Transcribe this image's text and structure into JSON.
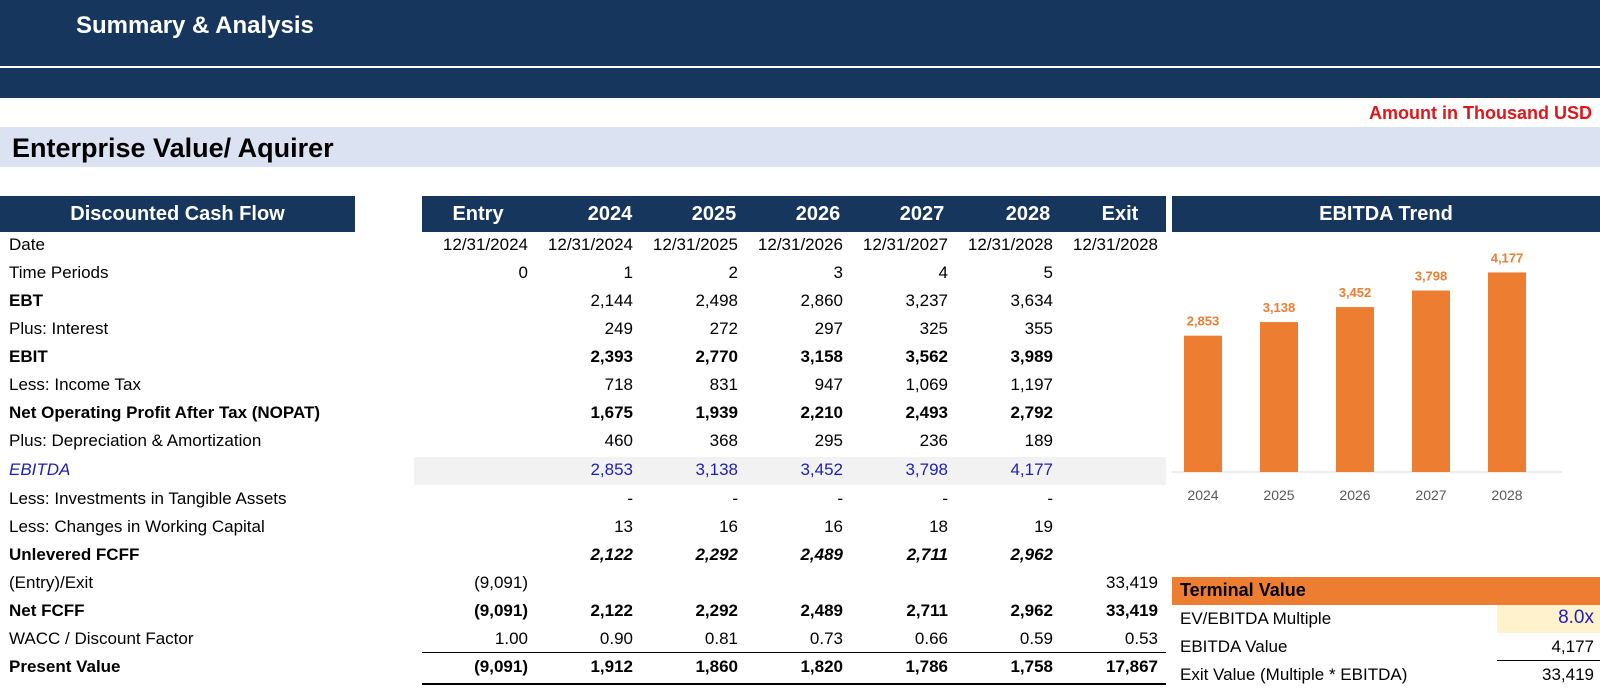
{
  "header": {
    "title": "Summary & Analysis"
  },
  "units_note": "Amount in Thousand USD",
  "section_title": "Enterprise Value/ Aquirer",
  "table": {
    "title": "Discounted Cash Flow",
    "columns": [
      "Entry",
      "2024",
      "2025",
      "2026",
      "2027",
      "2028",
      "Exit"
    ],
    "rows": [
      {
        "label": "Date",
        "style": "normal",
        "values": [
          "12/31/2024",
          "12/31/2024",
          "12/31/2025",
          "12/31/2026",
          "12/31/2027",
          "12/31/2028",
          "12/31/2028"
        ]
      },
      {
        "label": "Time Periods",
        "style": "normal",
        "values": [
          "0",
          "1",
          "2",
          "3",
          "4",
          "5",
          ""
        ]
      },
      {
        "label": "EBT",
        "style": "label-bold",
        "values": [
          "",
          "2,144",
          "2,498",
          "2,860",
          "3,237",
          "3,634",
          ""
        ]
      },
      {
        "label": "Plus: Interest",
        "style": "normal",
        "values": [
          "",
          "249",
          "272",
          "297",
          "325",
          "355",
          ""
        ]
      },
      {
        "label": "EBIT",
        "style": "bold",
        "values": [
          "",
          "2,393",
          "2,770",
          "3,158",
          "3,562",
          "3,989",
          ""
        ]
      },
      {
        "label": "Less: Income Tax",
        "style": "normal",
        "values": [
          "",
          "718",
          "831",
          "947",
          "1,069",
          "1,197",
          ""
        ]
      },
      {
        "label": "Net Operating Profit After Tax (NOPAT)",
        "style": "bold",
        "values": [
          "",
          "1,675",
          "1,939",
          "2,210",
          "2,493",
          "2,792",
          ""
        ]
      },
      {
        "label": "Plus: Depreciation & Amortization",
        "style": "normal",
        "values": [
          "",
          "460",
          "368",
          "295",
          "236",
          "189",
          ""
        ]
      },
      {
        "label": "EBITDA",
        "style": "ebitda",
        "values": [
          "",
          "2,853",
          "3,138",
          "3,452",
          "3,798",
          "4,177",
          ""
        ]
      },
      {
        "label": "Less: Investments in Tangible Assets",
        "style": "normal",
        "values": [
          "",
          "-",
          "-",
          "-",
          "-",
          "-",
          ""
        ]
      },
      {
        "label": "Less: Changes in Working Capital",
        "style": "normal",
        "values": [
          "",
          "13",
          "16",
          "16",
          "18",
          "19",
          ""
        ]
      },
      {
        "label": "Unlevered FCFF",
        "style": "bold-italic",
        "values": [
          "",
          "2,122",
          "2,292",
          "2,489",
          "2,711",
          "2,962",
          ""
        ]
      },
      {
        "label": "(Entry)/Exit",
        "style": "normal",
        "values": [
          "(9,091)",
          "",
          "",
          "",
          "",
          "",
          "33,419"
        ]
      },
      {
        "label": "Net FCFF",
        "style": "bold",
        "values": [
          "(9,091)",
          "2,122",
          "2,292",
          "2,489",
          "2,711",
          "2,962",
          "33,419"
        ]
      },
      {
        "label": "WACC / Discount Factor",
        "style": "normal",
        "values": [
          "1.00",
          "0.90",
          "0.81",
          "0.73",
          "0.66",
          "0.59",
          "0.53"
        ]
      },
      {
        "label": "Present Value",
        "style": "bold",
        "values": [
          "(9,091)",
          "1,912",
          "1,860",
          "1,820",
          "1,786",
          "1,758",
          "17,867"
        ]
      }
    ]
  },
  "terminal_value": {
    "title": "Terminal Value",
    "rows": [
      {
        "label": "EV/EBITDA Multiple",
        "value": "8.0x"
      },
      {
        "label": "EBITDA Value",
        "value": "4,177"
      },
      {
        "label": "Exit Value (Multiple * EBITDA)",
        "value": "33,419"
      }
    ]
  },
  "chart_data": {
    "type": "bar",
    "title": "EBITDA Trend",
    "categories": [
      "2024",
      "2025",
      "2026",
      "2027",
      "2028"
    ],
    "values": [
      2853,
      3138,
      3452,
      3798,
      4177
    ],
    "data_labels": [
      "2,853",
      "3,138",
      "3,452",
      "3,798",
      "4,177"
    ],
    "bar_color": "#ed7d31",
    "label_color": "#ed7d31",
    "ylim": [
      0,
      4500
    ],
    "grid": false,
    "legend": "none"
  },
  "colors": {
    "header_bg": "#17365d",
    "section_bg": "#dbe3f3",
    "accent_red": "#e0161b",
    "ebitda_blue": "#1f1fb4",
    "terminal_orange": "#ed7d31",
    "input_fill": "#fff2cc"
  }
}
